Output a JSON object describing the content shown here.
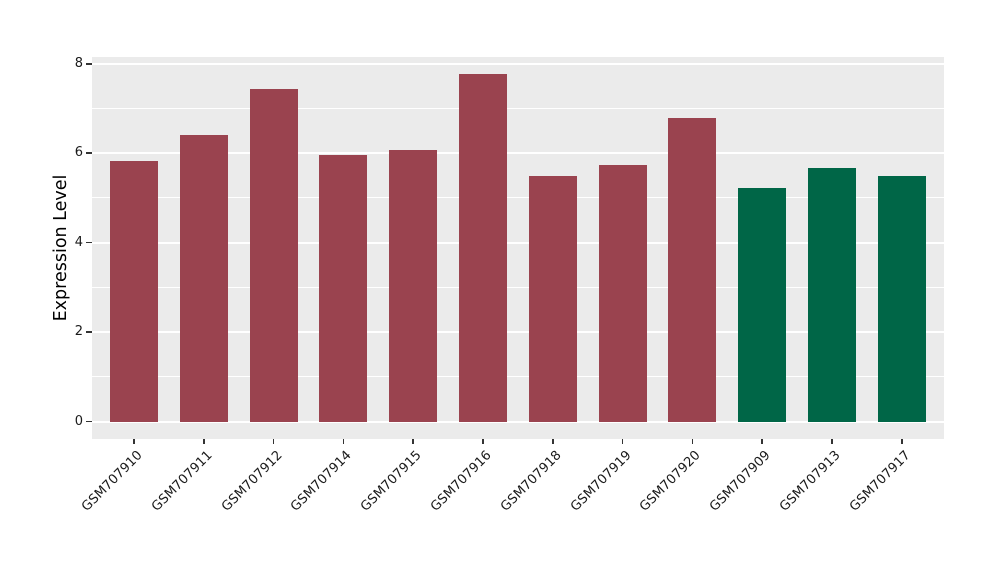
{
  "chart_data": {
    "type": "bar",
    "title": "",
    "xlabel": "",
    "ylabel": "Expression Level",
    "ylim": [
      -0.4,
      8.16
    ],
    "yticks": [
      0,
      2,
      4,
      6,
      8
    ],
    "minor_yticks": [
      1,
      3,
      5,
      7
    ],
    "grid": true,
    "legend_position": "none",
    "panel_bg": "#EBEBEB",
    "gridline_color": "#FFFFFF",
    "categories": [
      "GSM707910",
      "GSM707911",
      "GSM707912",
      "GSM707914",
      "GSM707915",
      "GSM707916",
      "GSM707918",
      "GSM707919",
      "GSM707920",
      "GSM707909",
      "GSM707913",
      "GSM707917"
    ],
    "values": [
      5.83,
      6.4,
      7.43,
      5.96,
      6.08,
      7.78,
      5.5,
      5.74,
      6.79,
      5.22,
      5.68,
      5.5
    ],
    "colors": [
      "#9A434F",
      "#9A434F",
      "#9A434F",
      "#9A434F",
      "#9A434F",
      "#9A434F",
      "#9A434F",
      "#9A434F",
      "#9A434F",
      "#006647",
      "#006647",
      "#006647"
    ],
    "group_colors": {
      "group1": "#9A434F",
      "group2": "#006647"
    }
  }
}
